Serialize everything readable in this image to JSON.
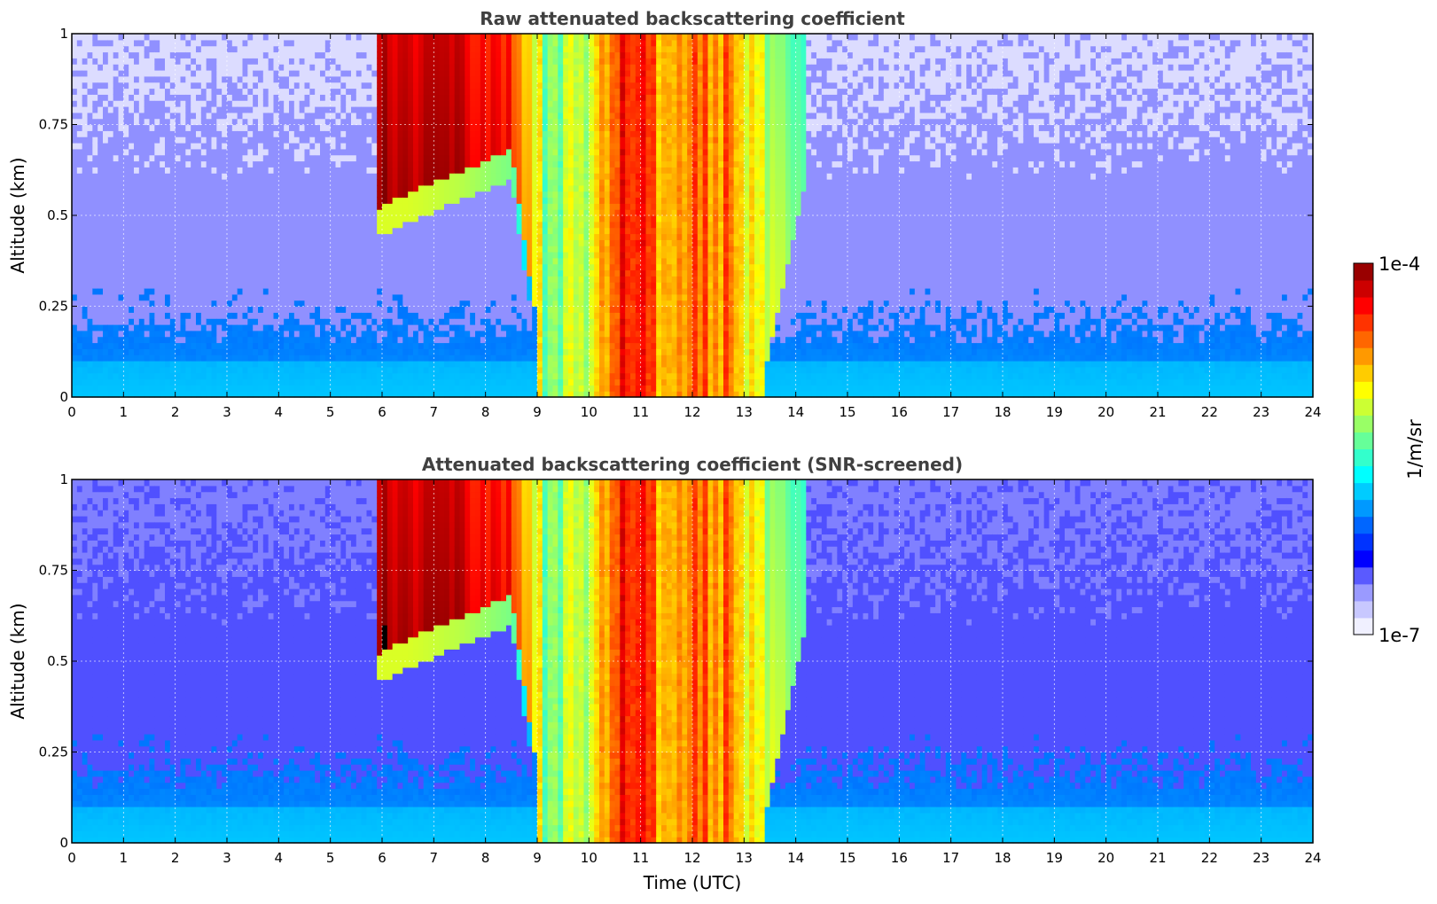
{
  "chart_data": [
    {
      "type": "heatmap",
      "title": "Raw attenuated backscattering coefficient",
      "xlabel": "",
      "ylabel": "Altitude (km)",
      "xlim": [
        0,
        24
      ],
      "ylim": [
        0,
        1
      ],
      "xticks": [
        "0",
        "1",
        "2",
        "3",
        "4",
        "5",
        "6",
        "7",
        "8",
        "9",
        "10",
        "11",
        "12",
        "13",
        "14",
        "15",
        "16",
        "17",
        "18",
        "19",
        "20",
        "21",
        "22",
        "23",
        "24"
      ],
      "yticks": [
        "0",
        "0.25",
        "0.5",
        "0.75",
        "1"
      ],
      "grid": true,
      "colorscale": "jet",
      "color_scale": "log",
      "value_range": [
        1e-07,
        0.0001
      ],
      "features": {
        "time_utc": [
          0,
          2,
          4,
          5.9,
          6.5,
          7.5,
          8.5,
          9.2,
          10.0,
          10.8,
          11.5,
          12.5,
          13.3,
          14.2,
          16,
          20,
          24
        ],
        "cloud_base_km": [
          null,
          null,
          null,
          0.52,
          0.56,
          0.62,
          0.68,
          0.0,
          0.0,
          0.0,
          0.0,
          0.0,
          0.0,
          0.6,
          null,
          null,
          null
        ],
        "log10_value_in_cloud": [
          null,
          null,
          null,
          -4.1,
          -4.1,
          -4.2,
          -4.4,
          -5.6,
          -5.3,
          -4.3,
          -5.0,
          -4.7,
          -5.2,
          -5.6,
          null,
          null,
          null
        ],
        "log10_value_background_low": -6.3,
        "log10_value_background_high": -6.8
      }
    },
    {
      "type": "heatmap",
      "title": "Attenuated backscattering coefficient (SNR-screened)",
      "xlabel": "Time (UTC)",
      "ylabel": "Altitude (km)",
      "xlim": [
        0,
        24
      ],
      "ylim": [
        0,
        1
      ],
      "xticks": [
        "0",
        "1",
        "2",
        "3",
        "4",
        "5",
        "6",
        "7",
        "8",
        "9",
        "10",
        "11",
        "12",
        "13",
        "14",
        "15",
        "16",
        "17",
        "18",
        "19",
        "20",
        "21",
        "22",
        "23",
        "24"
      ],
      "yticks": [
        "0",
        "0.25",
        "0.5",
        "0.75",
        "1"
      ],
      "grid": true,
      "colorscale": "jet",
      "color_scale": "log",
      "value_range": [
        1e-07,
        0.0001
      ],
      "note_visible": "values above the colour range shown in black"
    }
  ],
  "colorbar": {
    "label": "1/m/sr",
    "max_label": "1e-4",
    "min_label": "1e-7",
    "colors": [
      "#f0f0ff",
      "#c8c8ff",
      "#9a9aff",
      "#5a5aff",
      "#0000ff",
      "#0033ff",
      "#0066ff",
      "#0099ff",
      "#00ccff",
      "#00ffff",
      "#33ffcc",
      "#66ff99",
      "#99ff66",
      "#ccff33",
      "#ffff00",
      "#ffcc00",
      "#ff9900",
      "#ff6600",
      "#ff3300",
      "#ff0000",
      "#cc0000",
      "#990000"
    ]
  }
}
